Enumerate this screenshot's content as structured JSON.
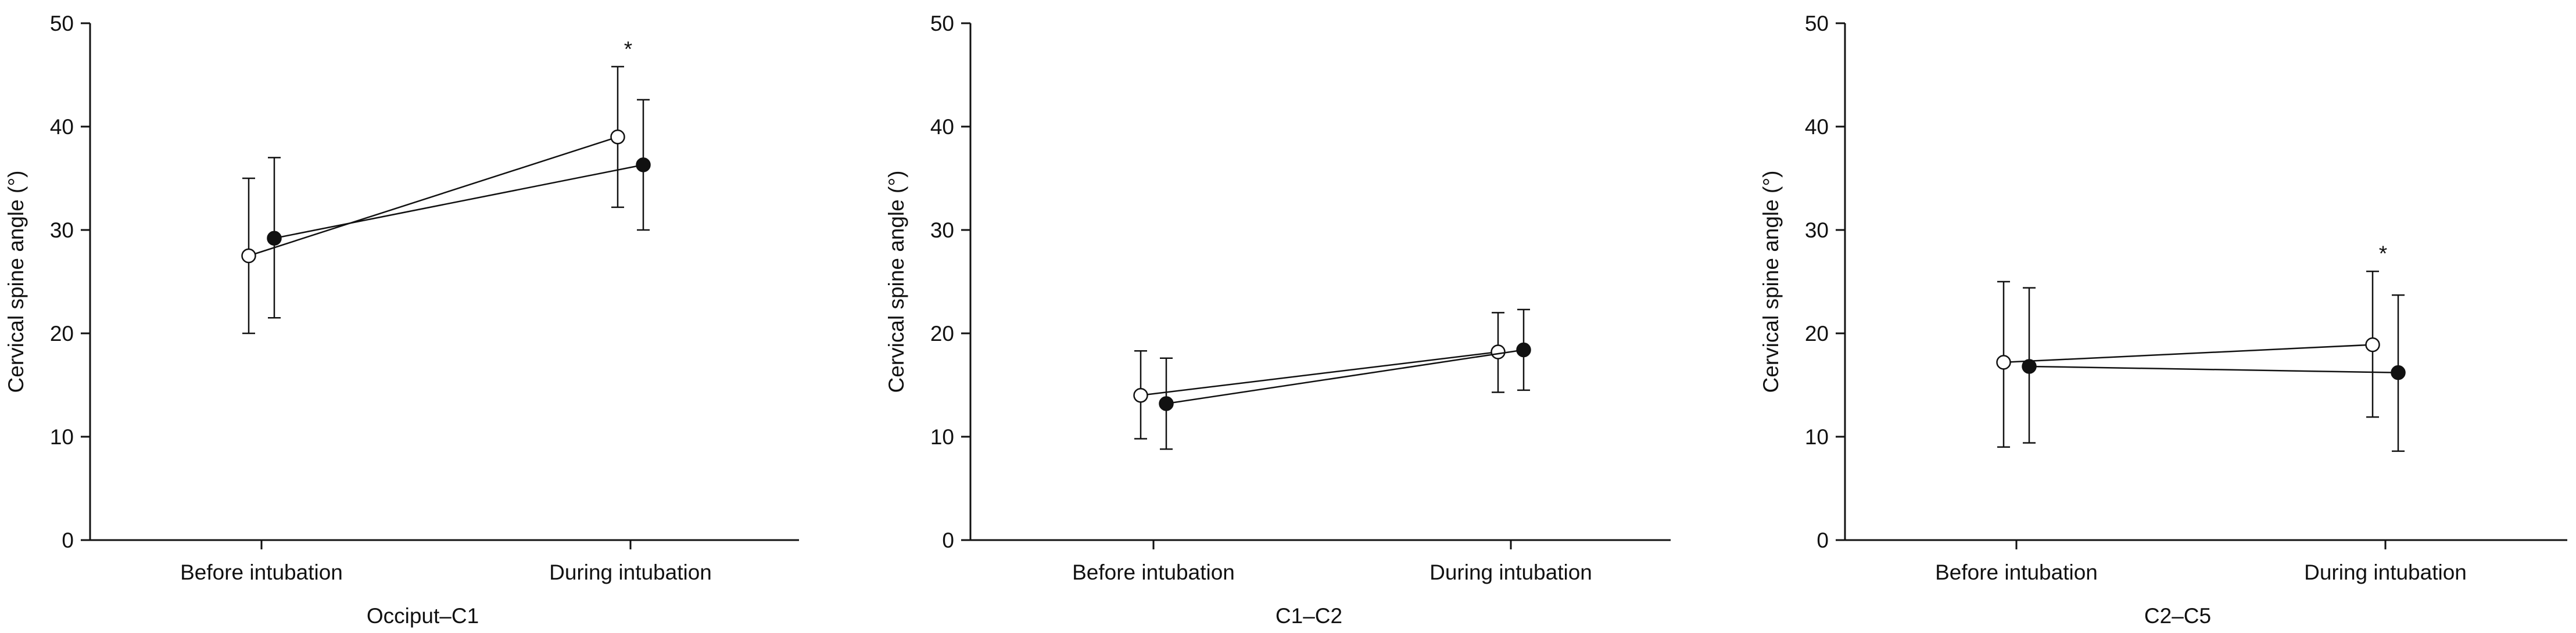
{
  "chart_data": [
    {
      "type": "line",
      "xlabel": "Occiput–C1",
      "ylabel": "Cervical spine angle (°)",
      "categories": [
        "Before intubation",
        "During intubation"
      ],
      "ylim": [
        0,
        50
      ],
      "yticks": [
        0,
        10,
        20,
        30,
        40,
        50
      ],
      "grid": false,
      "series": [
        {
          "marker": "open-circle",
          "values": [
            27.5,
            39.0
          ],
          "err_low": [
            20.0,
            32.2
          ],
          "err_high": [
            35.0,
            45.8
          ]
        },
        {
          "marker": "filled-circle",
          "values": [
            29.2,
            36.3
          ],
          "err_low": [
            21.5,
            30.0
          ],
          "err_high": [
            37.0,
            42.6
          ]
        }
      ],
      "annotations": [
        {
          "category_index": 1,
          "text": "*"
        }
      ]
    },
    {
      "type": "line",
      "xlabel": "C1–C2",
      "ylabel": "Cervical spine angle (°)",
      "categories": [
        "Before intubation",
        "During intubation"
      ],
      "ylim": [
        0,
        50
      ],
      "yticks": [
        0,
        10,
        20,
        30,
        40,
        50
      ],
      "grid": false,
      "series": [
        {
          "marker": "open-circle",
          "values": [
            14.0,
            18.2
          ],
          "err_low": [
            9.8,
            14.3
          ],
          "err_high": [
            18.3,
            22.0
          ]
        },
        {
          "marker": "filled-circle",
          "values": [
            13.2,
            18.4
          ],
          "err_low": [
            8.8,
            14.5
          ],
          "err_high": [
            17.6,
            22.3
          ]
        }
      ],
      "annotations": []
    },
    {
      "type": "line",
      "xlabel": "C2–C5",
      "ylabel": "Cervical spine angle (°)",
      "categories": [
        "Before intubation",
        "During intubation"
      ],
      "ylim": [
        0,
        50
      ],
      "yticks": [
        0,
        10,
        20,
        30,
        40,
        50
      ],
      "grid": false,
      "series": [
        {
          "marker": "open-circle",
          "values": [
            17.2,
            18.9
          ],
          "err_low": [
            9.0,
            11.9
          ],
          "err_high": [
            25.0,
            26.0
          ]
        },
        {
          "marker": "filled-circle",
          "values": [
            16.8,
            16.2
          ],
          "err_low": [
            9.4,
            8.6
          ],
          "err_high": [
            24.4,
            23.7
          ]
        }
      ],
      "annotations": [
        {
          "category_index": 1,
          "text": "*"
        }
      ]
    }
  ]
}
